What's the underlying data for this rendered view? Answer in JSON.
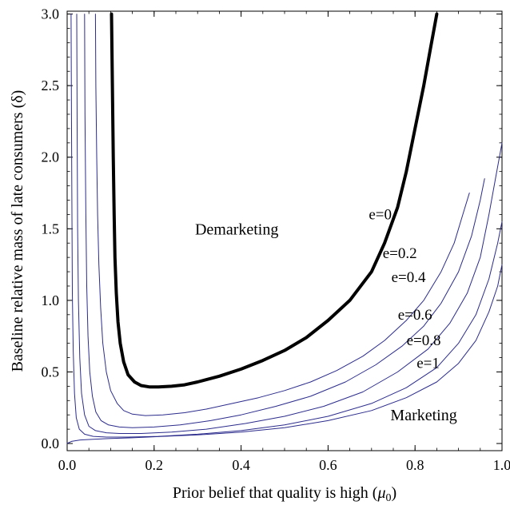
{
  "chart_data": {
    "type": "line",
    "title": "",
    "xlabel": "Prior belief that quality is high (",
    "xlabel_symbol": "μ",
    "xlabel_subscript": "0",
    "xlabel_close": ")",
    "ylabel": "Baseline relative mass of late consumers (δ)",
    "xlim": [
      0,
      1
    ],
    "ylim": [
      -0.05,
      3.02
    ],
    "x_ticks": [
      "0.0",
      "0.2",
      "0.4",
      "0.6",
      "0.8",
      "1.0"
    ],
    "y_ticks": [
      "0.0",
      "0.5",
      "1.0",
      "1.5",
      "2.0",
      "2.5",
      "3.0"
    ],
    "regions": [
      {
        "label": "Demarketing",
        "x": 0.39,
        "y": 1.5
      },
      {
        "label": "Marketing",
        "x": 0.82,
        "y": 0.2
      }
    ],
    "line_colors": {
      "e0": "#000000",
      "others": "#2b2b8c"
    },
    "series": [
      {
        "name": "e=0",
        "label_x": 0.72,
        "label_y": 1.6,
        "x": [
          0.102,
          0.104,
          0.106,
          0.108,
          0.11,
          0.113,
          0.117,
          0.122,
          0.13,
          0.14,
          0.155,
          0.17,
          0.19,
          0.21,
          0.24,
          0.27,
          0.3,
          0.35,
          0.4,
          0.45,
          0.5,
          0.55,
          0.6,
          0.65,
          0.7,
          0.73,
          0.76,
          0.78,
          0.8,
          0.82,
          0.835,
          0.85
        ],
        "y": [
          3.0,
          2.5,
          2.0,
          1.6,
          1.3,
          1.05,
          0.85,
          0.7,
          0.57,
          0.48,
          0.43,
          0.405,
          0.395,
          0.395,
          0.4,
          0.41,
          0.43,
          0.47,
          0.52,
          0.58,
          0.65,
          0.74,
          0.86,
          1.0,
          1.2,
          1.4,
          1.65,
          1.9,
          2.2,
          2.5,
          2.75,
          3.0
        ]
      },
      {
        "name": "e=0.2",
        "label_x": 0.765,
        "label_y": 1.33,
        "x": [
          0.065,
          0.066,
          0.068,
          0.07,
          0.073,
          0.077,
          0.082,
          0.09,
          0.1,
          0.115,
          0.13,
          0.15,
          0.18,
          0.22,
          0.27,
          0.32,
          0.38,
          0.44,
          0.5,
          0.56,
          0.62,
          0.68,
          0.73,
          0.78,
          0.82,
          0.86,
          0.89,
          0.91,
          0.925
        ],
        "y": [
          3.0,
          2.5,
          2.0,
          1.6,
          1.25,
          0.95,
          0.7,
          0.5,
          0.37,
          0.28,
          0.23,
          0.205,
          0.195,
          0.2,
          0.215,
          0.24,
          0.28,
          0.32,
          0.37,
          0.43,
          0.51,
          0.61,
          0.72,
          0.86,
          1.0,
          1.2,
          1.4,
          1.6,
          1.75
        ]
      },
      {
        "name": "e=0.4",
        "label_x": 0.785,
        "label_y": 1.16,
        "x": [
          0.04,
          0.041,
          0.043,
          0.045,
          0.048,
          0.052,
          0.058,
          0.066,
          0.078,
          0.095,
          0.12,
          0.15,
          0.2,
          0.26,
          0.33,
          0.4,
          0.48,
          0.56,
          0.64,
          0.71,
          0.77,
          0.82,
          0.86,
          0.9,
          0.93,
          0.95,
          0.96
        ],
        "y": [
          3.0,
          2.3,
          1.6,
          1.1,
          0.75,
          0.5,
          0.33,
          0.22,
          0.16,
          0.13,
          0.115,
          0.11,
          0.115,
          0.13,
          0.16,
          0.2,
          0.26,
          0.33,
          0.43,
          0.55,
          0.68,
          0.82,
          0.98,
          1.2,
          1.45,
          1.7,
          1.85
        ]
      },
      {
        "name": "e=0.6",
        "label_x": 0.8,
        "label_y": 0.9,
        "x": [
          0.022,
          0.023,
          0.024,
          0.026,
          0.029,
          0.033,
          0.04,
          0.05,
          0.065,
          0.09,
          0.12,
          0.17,
          0.24,
          0.32,
          0.41,
          0.5,
          0.59,
          0.68,
          0.76,
          0.83,
          0.88,
          0.92,
          0.95,
          0.97,
          0.985,
          1.0
        ],
        "y": [
          3.0,
          2.2,
          1.5,
          1.0,
          0.6,
          0.35,
          0.2,
          0.12,
          0.09,
          0.075,
          0.07,
          0.07,
          0.08,
          0.1,
          0.14,
          0.19,
          0.26,
          0.36,
          0.5,
          0.66,
          0.84,
          1.05,
          1.3,
          1.6,
          1.85,
          2.1
        ]
      },
      {
        "name": "e=0.8",
        "label_x": 0.82,
        "label_y": 0.72,
        "x": [
          0.009,
          0.01,
          0.011,
          0.012,
          0.014,
          0.017,
          0.021,
          0.028,
          0.04,
          0.06,
          0.09,
          0.14,
          0.21,
          0.3,
          0.4,
          0.5,
          0.6,
          0.7,
          0.78,
          0.85,
          0.9,
          0.94,
          0.97,
          0.99,
          1.0
        ],
        "y": [
          3.0,
          2.3,
          1.6,
          1.05,
          0.65,
          0.35,
          0.18,
          0.1,
          0.065,
          0.05,
          0.045,
          0.045,
          0.05,
          0.065,
          0.09,
          0.13,
          0.19,
          0.28,
          0.39,
          0.53,
          0.7,
          0.9,
          1.15,
          1.4,
          1.55
        ]
      },
      {
        "name": "e=1",
        "label_x": 0.83,
        "label_y": 0.56,
        "x": [
          0.0,
          0.01,
          0.03,
          0.06,
          0.1,
          0.15,
          0.22,
          0.3,
          0.4,
          0.5,
          0.6,
          0.7,
          0.78,
          0.85,
          0.9,
          0.94,
          0.97,
          0.99,
          1.0
        ],
        "y": [
          0.0,
          0.015,
          0.025,
          0.03,
          0.035,
          0.04,
          0.05,
          0.06,
          0.08,
          0.11,
          0.16,
          0.23,
          0.32,
          0.43,
          0.56,
          0.72,
          0.92,
          1.1,
          1.25
        ]
      }
    ]
  }
}
